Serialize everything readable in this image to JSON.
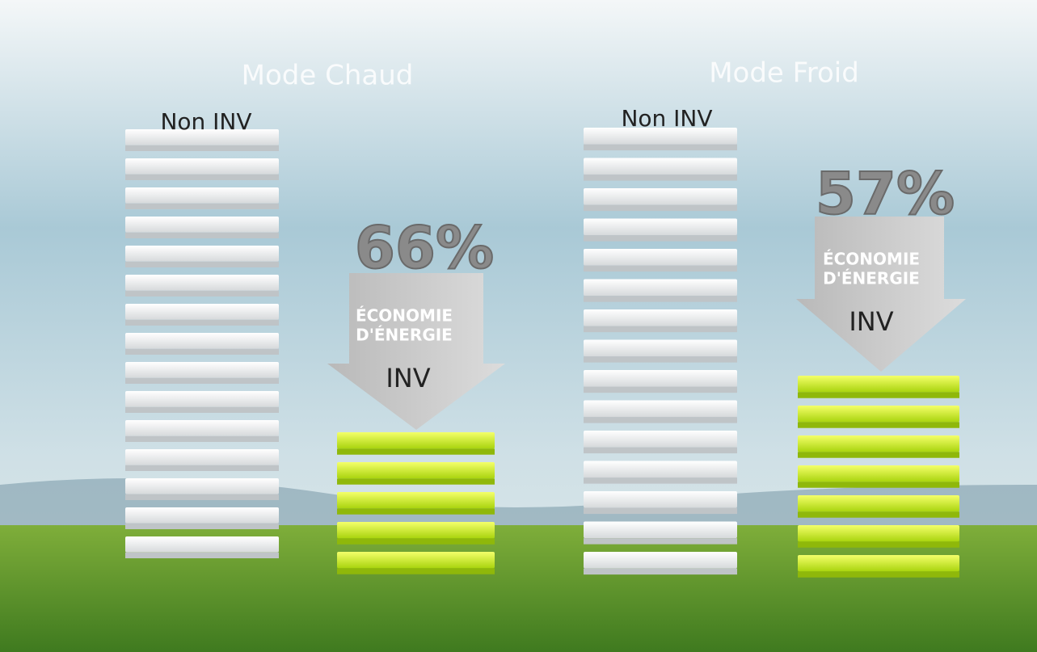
{
  "panels": [
    {
      "title": "Mode Chaud",
      "baseline_label": "Non INV",
      "saving": "66%",
      "saving_caption": [
        "ÉCONOMIE",
        "D'ÉNERGIE"
      ],
      "inverter_label": "INV"
    },
    {
      "title": "Mode Froid",
      "baseline_label": "Non INV",
      "saving": "57%",
      "saving_caption": [
        "ÉCONOMIE",
        "D'ÉNERGIE"
      ],
      "inverter_label": "INV"
    }
  ]
}
